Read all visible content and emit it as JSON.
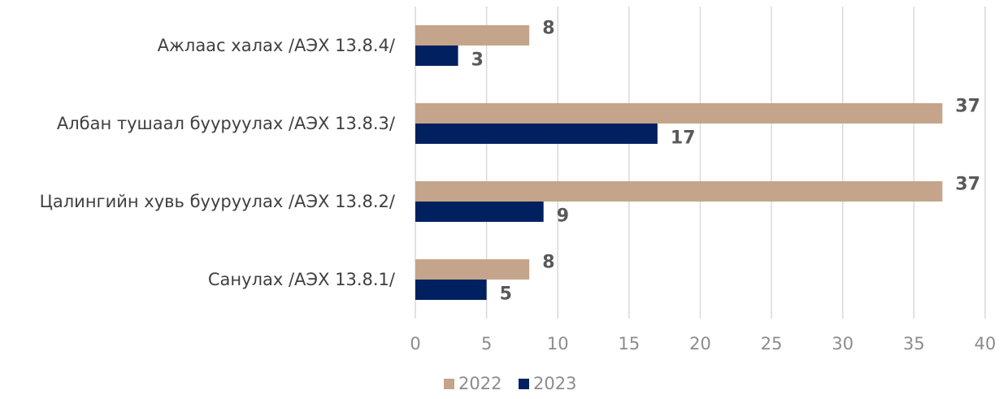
{
  "chart_data": {
    "type": "bar",
    "orientation": "horizontal",
    "categories": [
      "Санулах /АЭХ 13.8.1/",
      "Цалингийн хувь бууруулах /АЭХ 13.8.2/",
      "Албан тушаал бууруулах /АЭХ 13.8.3/",
      "Ажлаас халах /АЭХ 13.8.4/"
    ],
    "series": [
      {
        "name": "2022",
        "color": "#c4a58b",
        "values": [
          8,
          37,
          37,
          8
        ]
      },
      {
        "name": "2023",
        "color": "#002060",
        "values": [
          5,
          9,
          17,
          3
        ]
      }
    ],
    "xlim": [
      0,
      40
    ],
    "xticks": [
      "0",
      "5",
      "10",
      "15",
      "20",
      "25",
      "30",
      "35",
      "40"
    ],
    "grid": true,
    "legend_position": "bottom-center",
    "title": "",
    "xlabel": "",
    "ylabel": ""
  }
}
